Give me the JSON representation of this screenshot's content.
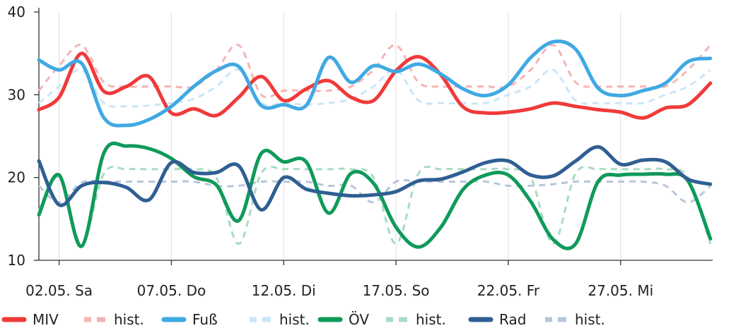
{
  "chart_data": {
    "type": "line",
    "x_ticks": [
      "02.05. Sa",
      "07.05. Do",
      "12.05. Di",
      "17.05. So",
      "22.05. Fr",
      "27.05. Mi"
    ],
    "x_tick_days": [
      2,
      7,
      12,
      17,
      22,
      27
    ],
    "x_range": [
      1.1,
      31.1
    ],
    "y_ticks": [
      10,
      20,
      30,
      40
    ],
    "ylim": [
      10,
      40
    ],
    "grid": "vertical",
    "legend_position": "bottom",
    "colors": {
      "miv": "#f03a3a",
      "fuss": "#3fa9e3",
      "oev": "#0f9a5a",
      "rad": "#2f5f93"
    },
    "legend": [
      {
        "label": "MIV",
        "color": "#f03a3a",
        "dashed": false
      },
      {
        "label": "hist.",
        "color": "#f5b4b4",
        "dashed": true
      },
      {
        "label": "Fuß",
        "color": "#3fa9e3",
        "dashed": false
      },
      {
        "label": "hist.",
        "color": "#c9e6f7",
        "dashed": true
      },
      {
        "label": "ÖV",
        "color": "#0f9a5a",
        "dashed": false
      },
      {
        "label": "hist.",
        "color": "#a8dcc0",
        "dashed": true
      },
      {
        "label": "Rad",
        "color": "#2f5f93",
        "dashed": false
      },
      {
        "label": "hist.",
        "color": "#b7c6dc",
        "dashed": true
      }
    ],
    "x": [
      1.1,
      2,
      3,
      4,
      5,
      6,
      7,
      8,
      9,
      10,
      11,
      12,
      13,
      14,
      15,
      16,
      17,
      18,
      19,
      20,
      21,
      22,
      23,
      24,
      25,
      26,
      27,
      28,
      29,
      30,
      31
    ],
    "series": [
      {
        "name": "MIV hist.",
        "color": "#f5b4b4",
        "dashed": true,
        "width": 3,
        "values": [
          30.5,
          33.5,
          36,
          31.5,
          31,
          31,
          31,
          31,
          33,
          36,
          30,
          30.5,
          30.5,
          30.5,
          31,
          33,
          36,
          31.5,
          31,
          31,
          31,
          31,
          33,
          36,
          31.5,
          31,
          31,
          31,
          31,
          33,
          36
        ]
      },
      {
        "name": "Fuß hist.",
        "color": "#c9e6f7",
        "dashed": true,
        "width": 3,
        "values": [
          29,
          31,
          33,
          29,
          28.6,
          28.7,
          29,
          29.5,
          31,
          33,
          29,
          29,
          28.8,
          29,
          29.5,
          31,
          33,
          29.3,
          29,
          29,
          29,
          30,
          31,
          33,
          29.3,
          29,
          29,
          29,
          30,
          31,
          33
        ]
      },
      {
        "name": "ÖV hist.",
        "color": "#a8dcc0",
        "dashed": true,
        "width": 3,
        "values": [
          16,
          20,
          12,
          20.5,
          21,
          21,
          21,
          21,
          20,
          12,
          20.5,
          21,
          21,
          21,
          21,
          20,
          12,
          20.5,
          21,
          21,
          21,
          21,
          20,
          12,
          20.5,
          21,
          21,
          21,
          21,
          20,
          12
        ]
      },
      {
        "name": "Rad hist.",
        "color": "#b7c6dc",
        "dashed": true,
        "width": 3,
        "values": [
          19,
          17,
          19.4,
          19.5,
          19.5,
          19.5,
          19.5,
          19.5,
          19,
          19,
          19.5,
          19.5,
          19.5,
          19,
          19,
          17,
          19.5,
          19.5,
          19.5,
          19.5,
          19.5,
          19,
          19,
          19.2,
          19.5,
          19.5,
          19.5,
          19.5,
          19,
          17,
          19
        ]
      },
      {
        "name": "MIV",
        "color": "#f03a3a",
        "dashed": false,
        "width": 5,
        "values": [
          28.2,
          29.7,
          35,
          30.4,
          31,
          32.2,
          27.8,
          28.3,
          27.5,
          29.7,
          32.2,
          29.3,
          30.7,
          31.7,
          29.7,
          29.3,
          32.9,
          34.6,
          32.4,
          28.5,
          27.8,
          27.9,
          28.3,
          29,
          28.6,
          28.2,
          27.9,
          27.2,
          28.4,
          28.8,
          31.4
        ]
      },
      {
        "name": "Fuß",
        "color": "#3fa9e3",
        "dashed": false,
        "width": 5,
        "values": [
          34.2,
          33,
          33.8,
          27.2,
          26.3,
          27,
          28.6,
          31,
          32.9,
          33.4,
          28.7,
          28.8,
          28.7,
          34.5,
          31.5,
          33.5,
          32.8,
          33.7,
          32.5,
          30.7,
          29.9,
          31.2,
          34.5,
          36.4,
          35.5,
          30.8,
          29.9,
          30.5,
          31.4,
          34,
          34.4
        ]
      },
      {
        "name": "ÖV",
        "color": "#0f9a5a",
        "dashed": false,
        "width": 5,
        "values": [
          15.5,
          20.3,
          11.7,
          23,
          23.8,
          23.5,
          22.3,
          20.1,
          19.1,
          14.8,
          22.9,
          21.9,
          21.9,
          15.7,
          20.5,
          19.3,
          14,
          11.6,
          14,
          18.6,
          20.3,
          20.3,
          17.1,
          12.5,
          12,
          19.5,
          20.3,
          20.4,
          20.4,
          19.6,
          12.6
        ]
      },
      {
        "name": "Rad",
        "color": "#2f5f93",
        "dashed": false,
        "width": 5,
        "values": [
          22,
          16.7,
          19,
          19.4,
          18.8,
          17.3,
          21.8,
          20.6,
          20.6,
          21.4,
          16.1,
          20,
          18.6,
          18.1,
          17.8,
          17.9,
          18.3,
          19.6,
          19.8,
          20.7,
          21.8,
          22,
          20.3,
          20.2,
          22,
          23.7,
          21.6,
          22.1,
          21.9,
          19.8,
          19.2
        ]
      }
    ]
  }
}
